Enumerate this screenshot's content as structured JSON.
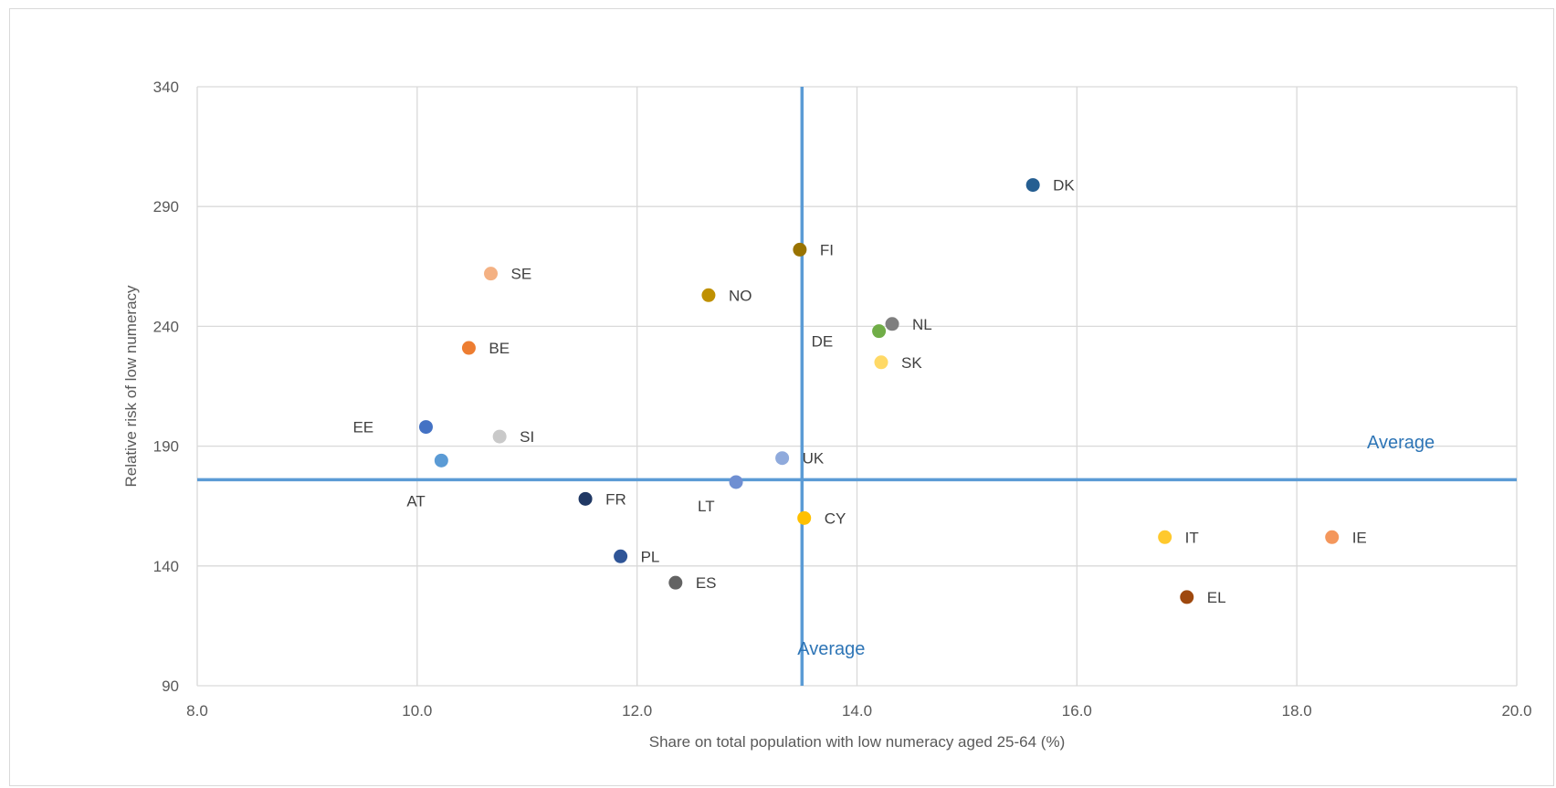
{
  "chart_data": {
    "type": "scatter",
    "title": "",
    "xlabel": "Share on total population with low numeracy aged 25-64 (%)",
    "ylabel": "Relative risk of low numeracy",
    "xlim": [
      8.0,
      20.0
    ],
    "ylim": [
      90,
      340
    ],
    "x_ticks": [
      "8.0",
      "10.0",
      "12.0",
      "14.0",
      "16.0",
      "18.0",
      "20.0"
    ],
    "y_ticks": [
      "90",
      "140",
      "190",
      "240",
      "290",
      "340"
    ],
    "grid": true,
    "legend": "none",
    "averages": {
      "x": 13.5,
      "y": 176,
      "x_label": "Average",
      "y_label": "Average",
      "color": "#5b9bd5",
      "label_color": "#2e75b6"
    },
    "points": [
      {
        "label": "DK",
        "x": 15.6,
        "y": 299,
        "color": "#255e91"
      },
      {
        "label": "FI",
        "x": 13.48,
        "y": 272,
        "color": "#997300"
      },
      {
        "label": "SE",
        "x": 10.67,
        "y": 262,
        "color": "#f4b183"
      },
      {
        "label": "NO",
        "x": 12.65,
        "y": 253,
        "color": "#bf9000"
      },
      {
        "label": "NL",
        "x": 14.32,
        "y": 241,
        "color": "#7f7f7f"
      },
      {
        "label": "DE",
        "x": 14.2,
        "y": 238,
        "color": "#70ad47"
      },
      {
        "label": "BE",
        "x": 10.47,
        "y": 231,
        "color": "#ed7d31"
      },
      {
        "label": "SK",
        "x": 14.22,
        "y": 225,
        "color": "#ffd966"
      },
      {
        "label": "EE",
        "x": 10.08,
        "y": 198,
        "color": "#4472c4"
      },
      {
        "label": "SI",
        "x": 10.75,
        "y": 194,
        "color": "#c9c9c9"
      },
      {
        "label": "AT",
        "x": 10.22,
        "y": 184,
        "color": "#5b9bd5"
      },
      {
        "label": "UK",
        "x": 13.32,
        "y": 185,
        "color": "#8faadc"
      },
      {
        "label": "LT",
        "x": 12.9,
        "y": 175,
        "color": "#6f8fd2"
      },
      {
        "label": "FR",
        "x": 11.53,
        "y": 168,
        "color": "#203864"
      },
      {
        "label": "CY",
        "x": 13.52,
        "y": 160,
        "color": "#ffc000"
      },
      {
        "label": "IT",
        "x": 16.8,
        "y": 152,
        "color": "#ffc92d"
      },
      {
        "label": "IE",
        "x": 18.32,
        "y": 152,
        "color": "#f4975c"
      },
      {
        "label": "PL",
        "x": 11.85,
        "y": 144,
        "color": "#2f5597"
      },
      {
        "label": "ES",
        "x": 12.35,
        "y": 133,
        "color": "#636363"
      },
      {
        "label": "EL",
        "x": 17.0,
        "y": 127,
        "color": "#9e480e"
      }
    ]
  }
}
